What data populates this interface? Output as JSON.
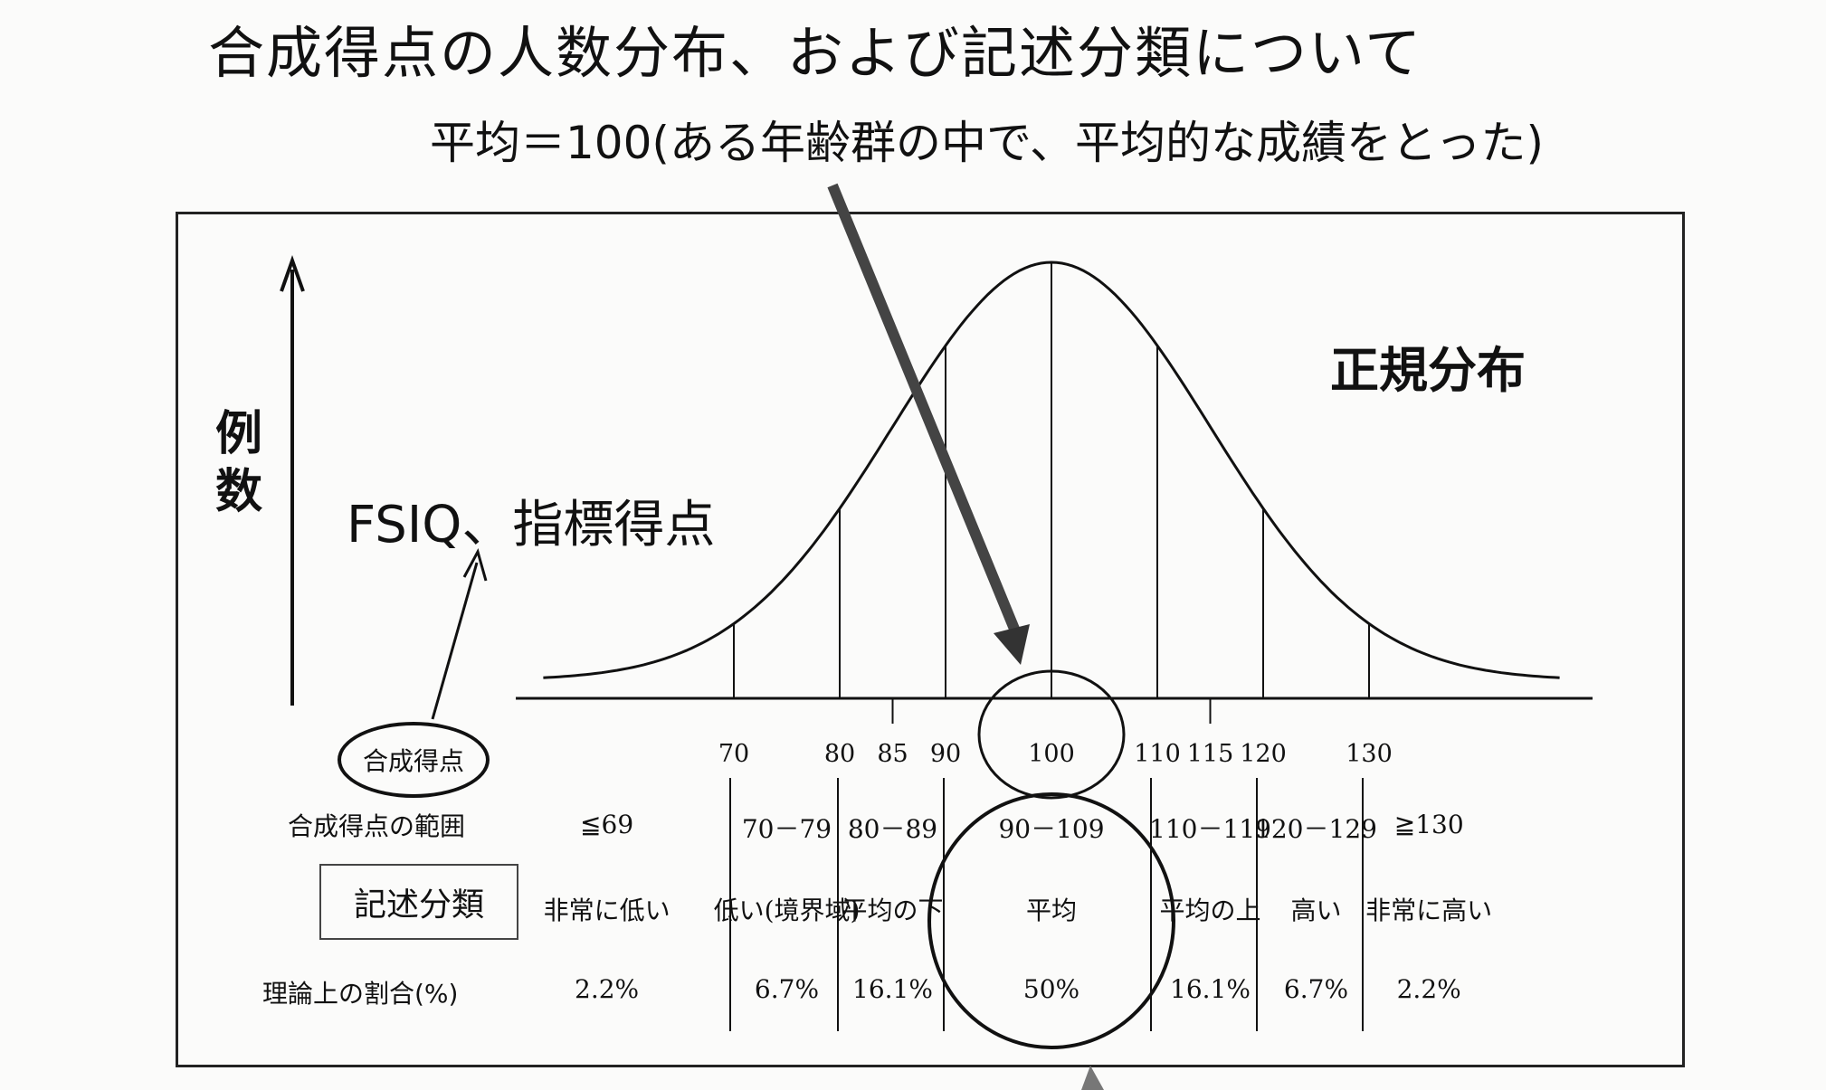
{
  "title": "合成得点の人数分布、および記述分類について",
  "subtitle": "平均＝100(ある年齢群の中で、平均的な成績をとった)",
  "y_axis_label": [
    "例",
    "数"
  ],
  "fsiq_label": "FSIQ、指標得点",
  "normal_label": "正規分布",
  "score_label": "合成得点",
  "ticks": [
    {
      "value": 70,
      "label": "70"
    },
    {
      "value": 80,
      "label": "80"
    },
    {
      "value": 85,
      "label": "85"
    },
    {
      "value": 90,
      "label": "90"
    },
    {
      "value": 100,
      "label": "100"
    },
    {
      "value": 110,
      "label": "110"
    },
    {
      "value": 115,
      "label": "115"
    },
    {
      "value": 120,
      "label": "120"
    },
    {
      "value": 130,
      "label": "130"
    }
  ],
  "table": {
    "range_header": "合成得点の範囲",
    "class_header": "記述分類",
    "pct_header": "理論上の割合(%)",
    "columns": [
      {
        "range": "≦69",
        "class": "非常に低い",
        "pct": "2.2%"
      },
      {
        "range": "70－79",
        "class": "低い(境界域)",
        "pct": "6.7%"
      },
      {
        "range": "80－89",
        "class": "平均の下",
        "pct": "16.1%"
      },
      {
        "range": "90－109",
        "class": "平均",
        "pct": "50%"
      },
      {
        "range": "110－119",
        "class": "平均の上",
        "pct": "16.1%"
      },
      {
        "range": "120－129",
        "class": "高い",
        "pct": "6.7%"
      },
      {
        "range": "≧130",
        "class": "非常に高い",
        "pct": "2.2%"
      }
    ]
  }
}
